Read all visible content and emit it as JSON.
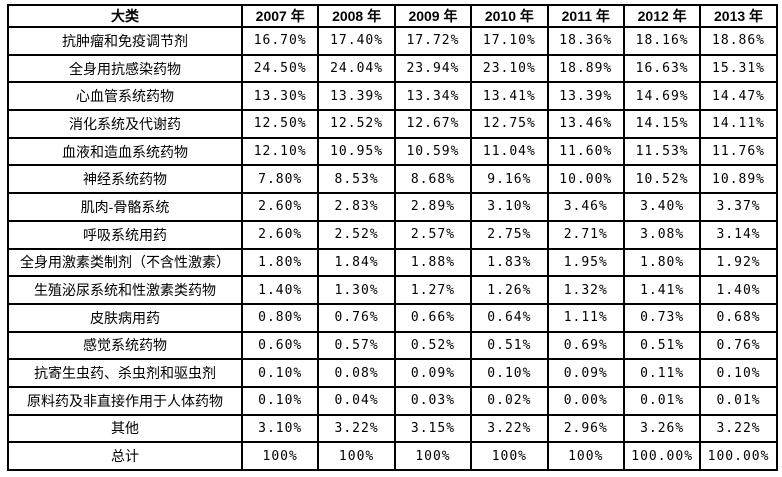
{
  "colors": {
    "background": "#ffffff",
    "border": "#000000",
    "text": "#000000"
  },
  "chart_data": {
    "type": "table",
    "columns": [
      "大类",
      "2007 年",
      "2008 年",
      "2009 年",
      "2010 年",
      "2011 年",
      "2012 年",
      "2013 年"
    ],
    "rows": [
      [
        "抗肿瘤和免疫调节剂",
        "16.70%",
        "17.40%",
        "17.72%",
        "17.10%",
        "18.36%",
        "18.16%",
        "18.86%"
      ],
      [
        "全身用抗感染药物",
        "24.50%",
        "24.04%",
        "23.94%",
        "23.10%",
        "18.89%",
        "16.63%",
        "15.31%"
      ],
      [
        "心血管系统药物",
        "13.30%",
        "13.39%",
        "13.34%",
        "13.41%",
        "13.39%",
        "14.69%",
        "14.47%"
      ],
      [
        "消化系统及代谢药",
        "12.50%",
        "12.52%",
        "12.67%",
        "12.75%",
        "13.46%",
        "14.15%",
        "14.11%"
      ],
      [
        "血液和造血系统药物",
        "12.10%",
        "10.95%",
        "10.59%",
        "11.04%",
        "11.60%",
        "11.53%",
        "11.76%"
      ],
      [
        "神经系统药物",
        "7.80%",
        "8.53%",
        "8.68%",
        "9.16%",
        "10.00%",
        "10.52%",
        "10.89%"
      ],
      [
        "肌肉-骨骼系统",
        "2.60%",
        "2.83%",
        "2.89%",
        "3.10%",
        "3.46%",
        "3.40%",
        "3.37%"
      ],
      [
        "呼吸系统用药",
        "2.60%",
        "2.52%",
        "2.57%",
        "2.75%",
        "2.71%",
        "3.08%",
        "3.14%"
      ],
      [
        "全身用激素类制剂（不含性激素）",
        "1.80%",
        "1.84%",
        "1.88%",
        "1.83%",
        "1.95%",
        "1.80%",
        "1.92%"
      ],
      [
        "生殖泌尿系统和性激素类药物",
        "1.40%",
        "1.30%",
        "1.27%",
        "1.26%",
        "1.32%",
        "1.41%",
        "1.40%"
      ],
      [
        "皮肤病用药",
        "0.80%",
        "0.76%",
        "0.66%",
        "0.64%",
        "1.11%",
        "0.73%",
        "0.68%"
      ],
      [
        "感觉系统药物",
        "0.60%",
        "0.57%",
        "0.52%",
        "0.51%",
        "0.69%",
        "0.51%",
        "0.76%"
      ],
      [
        "抗寄生虫药、杀虫剂和驱虫剂",
        "0.10%",
        "0.08%",
        "0.09%",
        "0.10%",
        "0.09%",
        "0.11%",
        "0.10%"
      ],
      [
        "原料药及非直接作用于人体药物",
        "0.10%",
        "0.04%",
        "0.03%",
        "0.02%",
        "0.00%",
        "0.01%",
        "0.01%"
      ],
      [
        "其他",
        "3.10%",
        "3.22%",
        "3.15%",
        "3.22%",
        "2.96%",
        "3.26%",
        "3.22%"
      ],
      [
        "总计",
        "100%",
        "100%",
        "100%",
        "100%",
        "100%",
        "100.00%",
        "100.00%"
      ]
    ]
  }
}
